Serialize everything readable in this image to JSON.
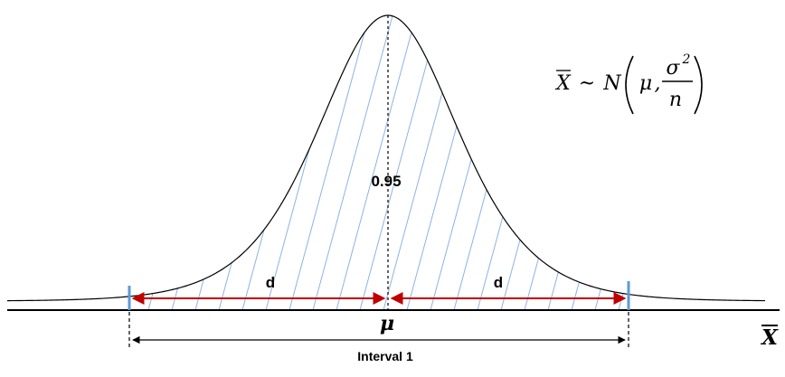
{
  "diagram": {
    "formula": {
      "lhs": "X",
      "tilde": "~",
      "dist": "N",
      "mu": "μ",
      "comma": ",",
      "numerator_base": "σ",
      "numerator_exp": "2",
      "denominator": "n"
    },
    "area_label": "0.95",
    "left_distance_label": "d",
    "right_distance_label": "d",
    "mean_label": "μ",
    "axis_label": "X",
    "interval_label": "Interval 1"
  },
  "colors": {
    "curve": "#000000",
    "hatch": "#8db3e2",
    "bound": "#5b9bd5",
    "arrow": "#c00000",
    "text": "#000000"
  }
}
